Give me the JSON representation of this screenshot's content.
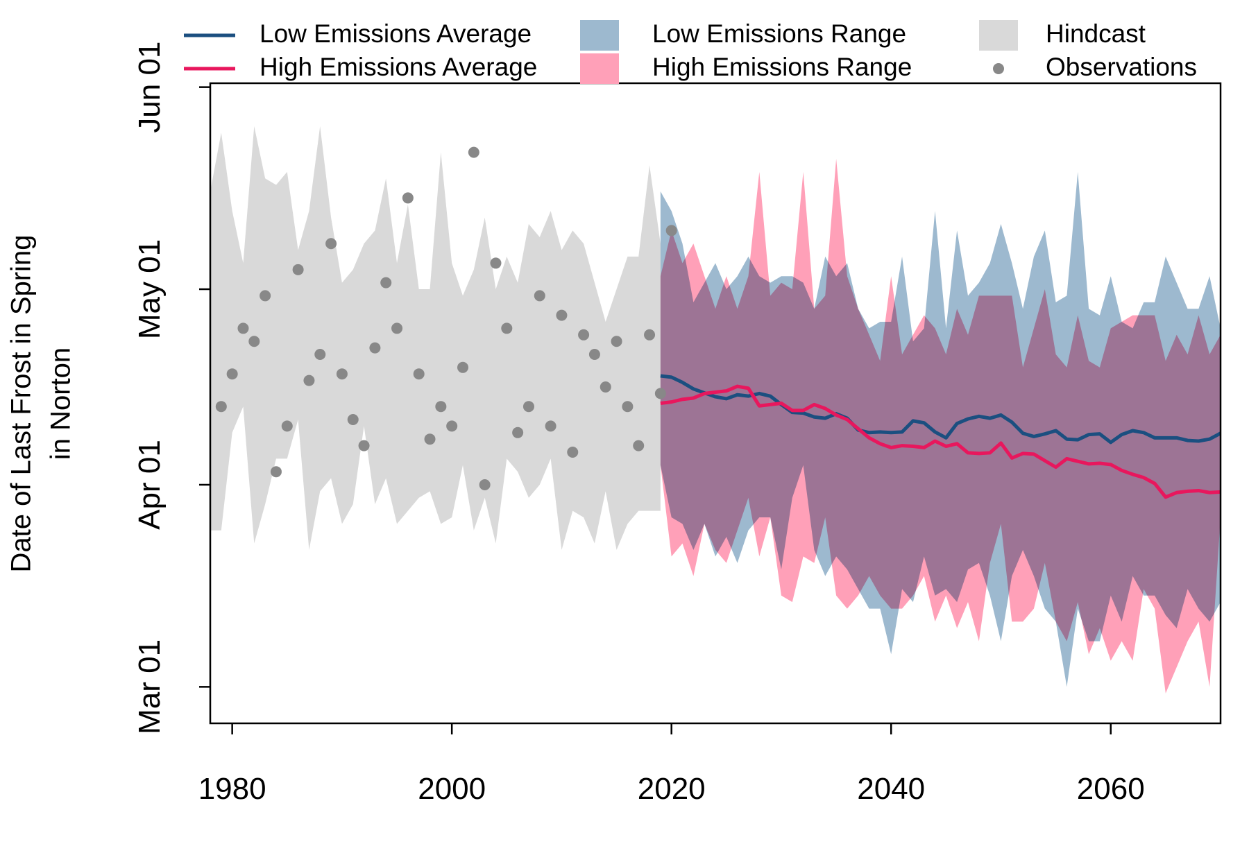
{
  "chart_data": {
    "type": "line",
    "ylabel": [
      "Date of Last Frost in Spring",
      "in Norton"
    ],
    "xlim": [
      1978,
      2070
    ],
    "xticks": [
      1980,
      2000,
      2020,
      2040,
      2060
    ],
    "ylim": [
      54.4,
      152.6
    ],
    "yticks": [
      {
        "value": 60,
        "label": "Mar 01"
      },
      {
        "value": 91,
        "label": "Apr 01"
      },
      {
        "value": 121,
        "label": "May 01"
      },
      {
        "value": 152,
        "label": "Jun 01"
      }
    ],
    "series": [
      {
        "name": "Low Emissions Average",
        "kind": "line",
        "color": "#1b4f80",
        "x": [
          2019,
          2020,
          2021,
          2022,
          2023,
          2024,
          2025,
          2026,
          2027,
          2028,
          2029,
          2030,
          2031,
          2032,
          2033,
          2034,
          2035,
          2036,
          2037,
          2038,
          2039,
          2040,
          2041,
          2042,
          2043,
          2044,
          2045,
          2046,
          2047,
          2048,
          2049,
          2050,
          2051,
          2052,
          2053,
          2054,
          2055,
          2056,
          2057,
          2058,
          2059,
          2060,
          2061,
          2062,
          2063,
          2064,
          2065,
          2066,
          2067,
          2068,
          2069,
          2070
        ],
        "values": [
          107.7,
          107.5,
          106.7,
          105.7,
          105.1,
          104.5,
          104.2,
          104.8,
          104.6,
          105.0,
          104.6,
          103.3,
          102.1,
          102.0,
          101.4,
          101.2,
          101.9,
          101.2,
          99.4,
          99.0,
          99.1,
          99.0,
          99.1,
          100.8,
          100.5,
          99.1,
          98.2,
          100.4,
          101.1,
          101.5,
          101.2,
          101.7,
          100.6,
          98.9,
          98.4,
          98.8,
          99.3,
          98.0,
          97.9,
          98.7,
          98.8,
          97.5,
          98.7,
          99.3,
          99.0,
          98.2,
          98.2,
          98.2,
          97.8,
          97.7,
          98.0,
          98.9
        ]
      },
      {
        "name": "High Emissions Average",
        "kind": "line",
        "color": "#e8175d",
        "x": [
          2019,
          2020,
          2021,
          2022,
          2023,
          2024,
          2025,
          2026,
          2027,
          2028,
          2029,
          2030,
          2031,
          2032,
          2033,
          2034,
          2035,
          2036,
          2037,
          2038,
          2039,
          2040,
          2041,
          2042,
          2043,
          2044,
          2045,
          2046,
          2047,
          2048,
          2049,
          2050,
          2051,
          2052,
          2053,
          2054,
          2055,
          2056,
          2057,
          2058,
          2059,
          2060,
          2061,
          2062,
          2063,
          2064,
          2065,
          2066,
          2067,
          2068,
          2069,
          2070
        ],
        "values": [
          103.5,
          103.7,
          104.1,
          104.3,
          105.0,
          105.2,
          105.4,
          106.1,
          105.8,
          103.1,
          103.3,
          103.5,
          102.4,
          102.4,
          103.3,
          102.7,
          101.7,
          101.0,
          99.6,
          98.2,
          97.3,
          96.7,
          97.0,
          96.9,
          96.7,
          97.7,
          96.9,
          97.3,
          95.9,
          95.8,
          95.9,
          97.4,
          95.1,
          95.8,
          95.7,
          94.7,
          93.7,
          95.0,
          94.6,
          94.2,
          94.3,
          94.1,
          93.2,
          92.6,
          92.1,
          91.2,
          89.1,
          89.8,
          90.0,
          90.1,
          89.8,
          89.9
        ]
      },
      {
        "name": "Low Emissions Range",
        "kind": "band",
        "color": "#9db9cf",
        "x": [
          2019,
          2020,
          2021,
          2022,
          2023,
          2024,
          2025,
          2026,
          2027,
          2028,
          2029,
          2030,
          2031,
          2032,
          2033,
          2034,
          2035,
          2036,
          2037,
          2038,
          2039,
          2040,
          2041,
          2042,
          2043,
          2044,
          2045,
          2046,
          2047,
          2048,
          2049,
          2050,
          2051,
          2052,
          2053,
          2054,
          2055,
          2056,
          2057,
          2058,
          2059,
          2060,
          2061,
          2062,
          2063,
          2064,
          2065,
          2066,
          2067,
          2068,
          2069,
          2070
        ],
        "upper": [
          136,
          133,
          128,
          119,
          122,
          125,
          121,
          123,
          126,
          123,
          122,
          123,
          123,
          122,
          118,
          126,
          123,
          125,
          118,
          115,
          116,
          116,
          126,
          113,
          115,
          133,
          115,
          130,
          120,
          122,
          125,
          131,
          125,
          118,
          126,
          130,
          119,
          120,
          139,
          118,
          117,
          123,
          116,
          115,
          119,
          119,
          126,
          122,
          118,
          118,
          123,
          115
        ],
        "lower": [
          94,
          86,
          85,
          81,
          85,
          80,
          83,
          79,
          84,
          86,
          86,
          78,
          89,
          94,
          81,
          77,
          80,
          78,
          75,
          72,
          72,
          65,
          75,
          73,
          80,
          74,
          75,
          73,
          78,
          79,
          74,
          67,
          77,
          81,
          77,
          72,
          70,
          60,
          72,
          67,
          67,
          74,
          70,
          77,
          74,
          74,
          71,
          69,
          75,
          72,
          70,
          73
        ]
      },
      {
        "name": "High Emissions Range",
        "kind": "band",
        "color": "#ffa0b8",
        "x": [
          2019,
          2020,
          2021,
          2022,
          2023,
          2024,
          2025,
          2026,
          2027,
          2028,
          2029,
          2030,
          2031,
          2032,
          2033,
          2034,
          2035,
          2036,
          2037,
          2038,
          2039,
          2040,
          2041,
          2042,
          2043,
          2044,
          2045,
          2046,
          2047,
          2048,
          2049,
          2050,
          2051,
          2052,
          2053,
          2054,
          2055,
          2056,
          2057,
          2058,
          2059,
          2060,
          2061,
          2062,
          2063,
          2064,
          2065,
          2066,
          2067,
          2068,
          2069,
          2070
        ],
        "upper": [
          123,
          130,
          125,
          128,
          123,
          118,
          123,
          118,
          123,
          139,
          120,
          122,
          121,
          139,
          118,
          120,
          141,
          123,
          118,
          114,
          110,
          123,
          111,
          114,
          117,
          115,
          111,
          118,
          114,
          120,
          120,
          120,
          120,
          109,
          115,
          121,
          111,
          109,
          117,
          110,
          109,
          115,
          116,
          117,
          117,
          117,
          110,
          114,
          111,
          117,
          111,
          114
        ],
        "lower": [
          94,
          80,
          82,
          77,
          85,
          81,
          79,
          84,
          89,
          80,
          86,
          74,
          73,
          80,
          79,
          86,
          74,
          72,
          74,
          77,
          74,
          72,
          72,
          74,
          77,
          70,
          74,
          69,
          73,
          67,
          79,
          85,
          70,
          70,
          72,
          79,
          70,
          67,
          73,
          65,
          69,
          64,
          67,
          64,
          75,
          72,
          59,
          63,
          67,
          70,
          60,
          86
        ]
      },
      {
        "name": "Hindcast",
        "kind": "band",
        "color": "#d9d9d9",
        "x": [
          1978,
          1979,
          1980,
          1981,
          1982,
          1983,
          1984,
          1985,
          1986,
          1987,
          1988,
          1989,
          1990,
          1991,
          1992,
          1993,
          1994,
          1995,
          1996,
          1997,
          1998,
          1999,
          2000,
          2001,
          2002,
          2003,
          2004,
          2005,
          2006,
          2007,
          2008,
          2009,
          2010,
          2011,
          2012,
          2013,
          2014,
          2015,
          2016,
          2017,
          2018,
          2019
        ],
        "upper": [
          136,
          145,
          133,
          125,
          146,
          138,
          137,
          139,
          127,
          133,
          146,
          132,
          122,
          124,
          128,
          130,
          138,
          125,
          134,
          121,
          121,
          142,
          125,
          120,
          124,
          132,
          121,
          126,
          122,
          131,
          129,
          133,
          127,
          130,
          128,
          122,
          116,
          121,
          126,
          126,
          140,
          128
        ],
        "lower": [
          84,
          84,
          99,
          103,
          82,
          88,
          95,
          95,
          101,
          81,
          90,
          92,
          85,
          88,
          100,
          88,
          92,
          85,
          87,
          89,
          90,
          85,
          86,
          94,
          84,
          89,
          82,
          95,
          93,
          89,
          91,
          95,
          81,
          87,
          86,
          82,
          90,
          81,
          85,
          87,
          87,
          87
        ]
      },
      {
        "name": "Observations",
        "kind": "scatter",
        "color": "#888888",
        "x": [
          1979,
          1980,
          1981,
          1982,
          1983,
          1984,
          1985,
          1986,
          1987,
          1988,
          1989,
          1990,
          1991,
          1992,
          1993,
          1994,
          1995,
          1996,
          1997,
          1998,
          1999,
          2000,
          2001,
          2002,
          2003,
          2004,
          2005,
          2006,
          2007,
          2008,
          2009,
          2010,
          2011,
          2012,
          2013,
          2014,
          2015,
          2016,
          2017,
          2018,
          2019,
          2020
        ],
        "values": [
          103,
          108,
          115,
          113,
          120,
          93,
          100,
          124,
          107,
          111,
          128,
          108,
          101,
          97,
          112,
          122,
          115,
          135,
          108,
          98,
          103,
          100,
          109,
          142,
          91,
          125,
          115,
          99,
          103,
          120,
          100,
          117,
          96,
          114,
          111,
          106,
          113,
          103,
          97,
          114,
          105,
          130
        ]
      }
    ]
  }
}
